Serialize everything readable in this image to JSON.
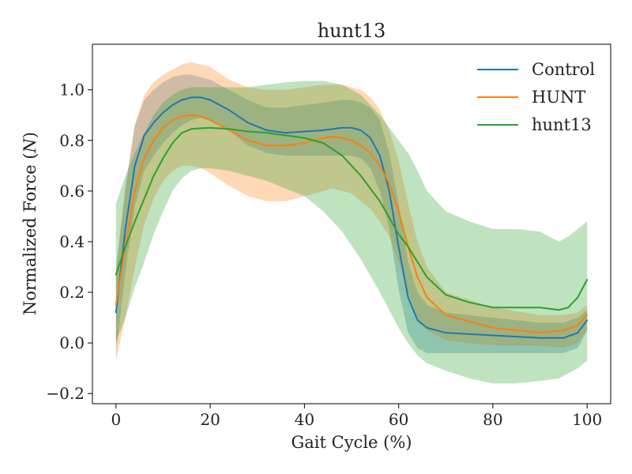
{
  "chart_data": {
    "type": "line",
    "title": "hunt13",
    "xlabel": "Gait Cycle (%)",
    "ylabel": "Normalized Force (N)",
    "ylabel_parts": {
      "prefix": "Normalized Force (",
      "italic": "N",
      "suffix": ")"
    },
    "xlim": [
      -5,
      105
    ],
    "ylim": [
      -0.24,
      1.18
    ],
    "xticks": [
      0,
      20,
      40,
      60,
      80,
      100
    ],
    "xtick_labels": [
      "0",
      "20",
      "40",
      "60",
      "80",
      "100"
    ],
    "yticks": [
      -0.2,
      0.0,
      0.2,
      0.4,
      0.6,
      0.8,
      1.0
    ],
    "ytick_labels": [
      "−0.2",
      "0.0",
      "0.2",
      "0.4",
      "0.6",
      "0.8",
      "1.0"
    ],
    "grid": false,
    "legend_position": "top-right",
    "bands_note": "shaded regions show mean ± 1 SD",
    "series": [
      {
        "name": "Control",
        "color": "#1f77b4",
        "x": [
          0,
          2,
          4,
          6,
          8,
          10,
          12,
          14,
          16,
          18,
          20,
          24,
          28,
          32,
          36,
          40,
          44,
          48,
          50,
          52,
          54,
          56,
          58,
          60,
          62,
          64,
          66,
          70,
          80,
          90,
          95,
          98,
          100
        ],
        "mean": [
          0.12,
          0.45,
          0.7,
          0.82,
          0.87,
          0.91,
          0.94,
          0.96,
          0.97,
          0.97,
          0.96,
          0.92,
          0.87,
          0.84,
          0.83,
          0.835,
          0.84,
          0.85,
          0.85,
          0.84,
          0.81,
          0.74,
          0.6,
          0.38,
          0.18,
          0.09,
          0.06,
          0.04,
          0.03,
          0.02,
          0.02,
          0.04,
          0.09
        ],
        "upper": [
          0.28,
          0.62,
          0.86,
          0.96,
          1.0,
          1.03,
          1.05,
          1.06,
          1.06,
          1.05,
          1.04,
          1.0,
          0.96,
          0.93,
          0.93,
          0.94,
          0.95,
          0.96,
          0.96,
          0.95,
          0.93,
          0.88,
          0.75,
          0.55,
          0.32,
          0.2,
          0.15,
          0.12,
          0.1,
          0.08,
          0.08,
          0.1,
          0.13
        ],
        "lower": [
          -0.04,
          0.28,
          0.54,
          0.68,
          0.74,
          0.79,
          0.83,
          0.86,
          0.88,
          0.89,
          0.88,
          0.84,
          0.78,
          0.75,
          0.74,
          0.74,
          0.74,
          0.74,
          0.74,
          0.73,
          0.69,
          0.6,
          0.45,
          0.21,
          0.04,
          -0.02,
          -0.04,
          -0.04,
          -0.04,
          -0.04,
          -0.04,
          -0.02,
          0.05
        ]
      },
      {
        "name": "HUNT",
        "color": "#ff7f0e",
        "x": [
          0,
          2,
          4,
          6,
          8,
          10,
          12,
          14,
          16,
          18,
          20,
          24,
          28,
          32,
          36,
          40,
          44,
          46,
          48,
          50,
          52,
          54,
          56,
          58,
          60,
          62,
          64,
          66,
          70,
          80,
          90,
          95,
          98,
          100
        ],
        "mean": [
          0.15,
          0.38,
          0.6,
          0.73,
          0.8,
          0.85,
          0.88,
          0.895,
          0.9,
          0.895,
          0.88,
          0.84,
          0.8,
          0.78,
          0.78,
          0.79,
          0.81,
          0.815,
          0.81,
          0.8,
          0.78,
          0.75,
          0.7,
          0.63,
          0.52,
          0.38,
          0.26,
          0.18,
          0.11,
          0.06,
          0.04,
          0.05,
          0.07,
          0.11
        ],
        "upper": [
          0.3,
          0.6,
          0.86,
          0.98,
          1.03,
          1.06,
          1.08,
          1.1,
          1.11,
          1.1,
          1.09,
          1.04,
          1.01,
          1.0,
          1.0,
          1.01,
          1.02,
          1.02,
          1.02,
          1.01,
          1.0,
          0.97,
          0.92,
          0.84,
          0.72,
          0.55,
          0.4,
          0.3,
          0.2,
          0.14,
          0.11,
          0.11,
          0.12,
          0.15
        ],
        "lower": [
          -0.07,
          0.1,
          0.3,
          0.47,
          0.57,
          0.64,
          0.68,
          0.7,
          0.7,
          0.69,
          0.67,
          0.62,
          0.58,
          0.56,
          0.56,
          0.58,
          0.6,
          0.61,
          0.6,
          0.59,
          0.56,
          0.53,
          0.48,
          0.42,
          0.32,
          0.2,
          0.1,
          0.05,
          0.01,
          -0.01,
          -0.01,
          -0.02,
          0.0,
          0.05
        ]
      },
      {
        "name": "hunt13",
        "color": "#2ca02c",
        "x": [
          0,
          2,
          4,
          6,
          8,
          10,
          12,
          14,
          16,
          18,
          20,
          24,
          28,
          32,
          36,
          40,
          44,
          48,
          52,
          56,
          60,
          62,
          64,
          66,
          70,
          75,
          80,
          85,
          90,
          94,
          96,
          98,
          100
        ],
        "mean": [
          0.27,
          0.38,
          0.48,
          0.57,
          0.66,
          0.73,
          0.79,
          0.83,
          0.845,
          0.848,
          0.85,
          0.845,
          0.835,
          0.83,
          0.82,
          0.81,
          0.79,
          0.74,
          0.66,
          0.56,
          0.43,
          0.38,
          0.32,
          0.26,
          0.19,
          0.16,
          0.14,
          0.14,
          0.14,
          0.13,
          0.14,
          0.18,
          0.25
        ],
        "upper": [
          0.55,
          0.66,
          0.75,
          0.83,
          0.9,
          0.95,
          0.98,
          1.0,
          1.01,
          1.01,
          1.01,
          1.01,
          1.01,
          1.02,
          1.03,
          1.035,
          1.035,
          1.02,
          0.98,
          0.9,
          0.8,
          0.75,
          0.68,
          0.6,
          0.52,
          0.48,
          0.45,
          0.45,
          0.44,
          0.4,
          0.42,
          0.45,
          0.48
        ],
        "lower": [
          0.0,
          0.1,
          0.22,
          0.32,
          0.43,
          0.52,
          0.6,
          0.65,
          0.68,
          0.69,
          0.69,
          0.68,
          0.66,
          0.64,
          0.61,
          0.58,
          0.52,
          0.44,
          0.33,
          0.2,
          0.06,
          0.0,
          -0.05,
          -0.08,
          -0.11,
          -0.14,
          -0.16,
          -0.16,
          -0.15,
          -0.14,
          -0.12,
          -0.1,
          -0.07
        ]
      }
    ]
  }
}
